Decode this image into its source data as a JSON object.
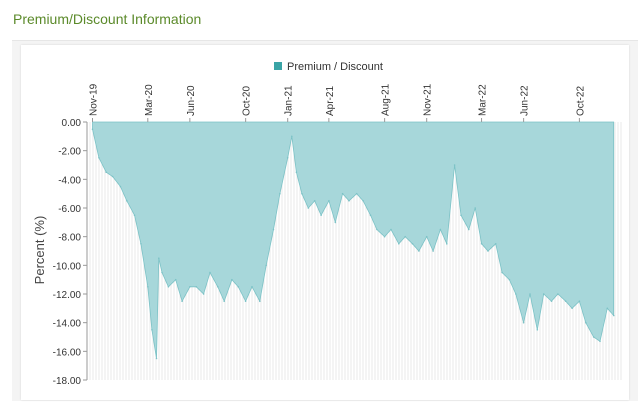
{
  "page": {
    "title": "Premium/Discount Information"
  },
  "colors": {
    "title": "#5b8a2a",
    "area_fill": "#a7d7da",
    "area_stroke": "#7cc2c6",
    "legend_swatch": "#3aa4a6",
    "grid": "#d9d9d9"
  },
  "chart_data": {
    "type": "area",
    "title": "",
    "xlabel": "",
    "ylabel": "Percent (%)",
    "ylim": [
      -18,
      0
    ],
    "y_ticks": [
      "0.00",
      "-2.00",
      "-4.00",
      "-6.00",
      "-8.00",
      "-10.00",
      "-12.00",
      "-14.00",
      "-16.00",
      "-18.00"
    ],
    "x_ticks": [
      "Nov-19",
      "Mar-20",
      "Jun-20",
      "Oct-20",
      "Jan-21",
      "Apr-21",
      "Aug-21",
      "Nov-21",
      "Mar-22",
      "Jun-22",
      "Oct-22"
    ],
    "grid": "vertical",
    "legend": "top-center",
    "series": [
      {
        "name": "Premium / Discount",
        "x": [
          "2019-11-01",
          "2019-11-15",
          "2019-12-01",
          "2019-12-15",
          "2020-01-01",
          "2020-01-15",
          "2020-02-01",
          "2020-02-15",
          "2020-03-01",
          "2020-03-10",
          "2020-03-20",
          "2020-03-25",
          "2020-04-01",
          "2020-04-15",
          "2020-05-01",
          "2020-05-15",
          "2020-06-01",
          "2020-06-15",
          "2020-07-01",
          "2020-07-15",
          "2020-08-01",
          "2020-08-15",
          "2020-09-01",
          "2020-09-15",
          "2020-10-01",
          "2020-10-15",
          "2020-11-01",
          "2020-11-15",
          "2020-12-01",
          "2020-12-15",
          "2021-01-01",
          "2021-01-10",
          "2021-01-20",
          "2021-02-01",
          "2021-02-15",
          "2021-03-01",
          "2021-03-15",
          "2021-04-01",
          "2021-04-15",
          "2021-05-01",
          "2021-05-15",
          "2021-06-01",
          "2021-06-15",
          "2021-07-01",
          "2021-07-15",
          "2021-08-01",
          "2021-08-15",
          "2021-09-01",
          "2021-09-15",
          "2021-10-01",
          "2021-10-15",
          "2021-11-01",
          "2021-11-15",
          "2021-12-01",
          "2021-12-15",
          "2022-01-01",
          "2022-01-15",
          "2022-02-01",
          "2022-02-15",
          "2022-03-01",
          "2022-03-15",
          "2022-04-01",
          "2022-04-15",
          "2022-05-01",
          "2022-05-15",
          "2022-06-01",
          "2022-06-15",
          "2022-07-01",
          "2022-07-15",
          "2022-08-01",
          "2022-08-15",
          "2022-09-01",
          "2022-09-15",
          "2022-10-01",
          "2022-10-15",
          "2022-11-01",
          "2022-11-15",
          "2022-12-01",
          "2022-12-15"
        ],
        "values": [
          -0.5,
          -2.5,
          -3.5,
          -3.8,
          -4.5,
          -5.5,
          -6.5,
          -8.5,
          -11.5,
          -14.5,
          -16.5,
          -9.5,
          -10.5,
          -11.5,
          -11.0,
          -12.5,
          -11.5,
          -11.5,
          -12.0,
          -10.5,
          -11.5,
          -12.5,
          -11.0,
          -11.5,
          -12.5,
          -11.5,
          -12.5,
          -10.0,
          -7.5,
          -5.0,
          -2.5,
          -1.0,
          -3.5,
          -5.0,
          -6.0,
          -5.5,
          -6.5,
          -5.5,
          -7.0,
          -5.0,
          -5.5,
          -5.0,
          -5.5,
          -6.5,
          -7.5,
          -8.0,
          -7.5,
          -8.5,
          -8.0,
          -8.5,
          -9.0,
          -8.0,
          -9.0,
          -7.5,
          -8.5,
          -3.0,
          -6.5,
          -7.5,
          -6.0,
          -8.5,
          -9.0,
          -8.5,
          -10.5,
          -11.0,
          -12.0,
          -14.0,
          -12.0,
          -14.5,
          -12.0,
          -12.5,
          -12.0,
          -12.5,
          -13.0,
          -12.5,
          -14.0,
          -15.0,
          -15.3,
          -13.0,
          -13.5
        ]
      }
    ]
  }
}
